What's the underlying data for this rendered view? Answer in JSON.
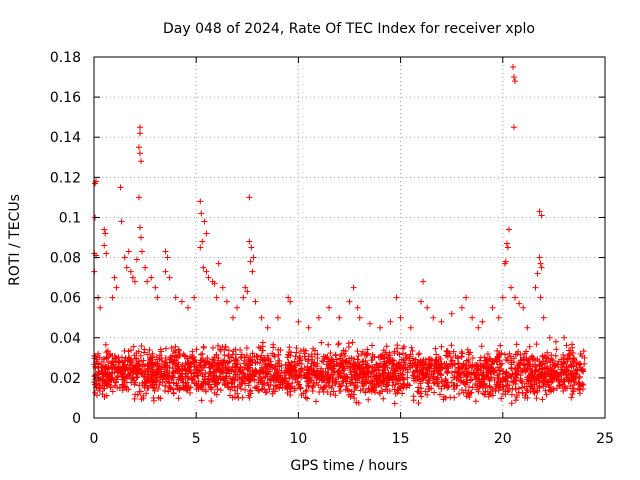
{
  "chart_data": {
    "type": "scatter",
    "title": "Day 048 of 2024, Rate Of TEC Index for receiver xplo",
    "xlabel": "GPS time / hours",
    "ylabel": "ROTI / TECUs",
    "xlim": [
      0,
      25
    ],
    "ylim": [
      0,
      0.18
    ],
    "x_ticks": [
      0,
      5,
      10,
      15,
      20,
      25
    ],
    "x_tick_labels": [
      "0",
      "5",
      "10",
      "15",
      "20",
      "25"
    ],
    "y_ticks": [
      0,
      0.02,
      0.04,
      0.06,
      0.08,
      0.1,
      0.12,
      0.14,
      0.16,
      0.18
    ],
    "y_tick_labels": [
      "0",
      "0.02",
      "0.04",
      "0.06",
      "0.08",
      "0.1",
      "0.12",
      "0.14",
      "0.16",
      "0.18"
    ],
    "grid": true,
    "marker": "+",
    "marker_color": "#ff0000",
    "points": [
      [
        0.05,
        0.117
      ],
      [
        0.1,
        0.118
      ],
      [
        0.05,
        0.1
      ],
      [
        0.02,
        0.082
      ],
      [
        0.1,
        0.081
      ],
      [
        0.02,
        0.073
      ],
      [
        0.3,
        0.055
      ],
      [
        0.5,
        0.094
      ],
      [
        0.55,
        0.092
      ],
      [
        0.5,
        0.086
      ],
      [
        0.6,
        0.082
      ],
      [
        0.2,
        0.06
      ],
      [
        0.9,
        0.06
      ],
      [
        1.0,
        0.07
      ],
      [
        1.1,
        0.065
      ],
      [
        1.3,
        0.115
      ],
      [
        1.35,
        0.098
      ],
      [
        1.5,
        0.08
      ],
      [
        1.6,
        0.075
      ],
      [
        1.7,
        0.083
      ],
      [
        1.8,
        0.073
      ],
      [
        1.9,
        0.07
      ],
      [
        2.0,
        0.068
      ],
      [
        2.1,
        0.079
      ],
      [
        2.25,
        0.145
      ],
      [
        2.25,
        0.142
      ],
      [
        2.2,
        0.135
      ],
      [
        2.25,
        0.132
      ],
      [
        2.3,
        0.128
      ],
      [
        2.2,
        0.11
      ],
      [
        2.25,
        0.095
      ],
      [
        2.3,
        0.09
      ],
      [
        2.35,
        0.083
      ],
      [
        2.5,
        0.075
      ],
      [
        2.6,
        0.068
      ],
      [
        2.8,
        0.07
      ],
      [
        3.0,
        0.065
      ],
      [
        3.1,
        0.06
      ],
      [
        3.5,
        0.083
      ],
      [
        3.6,
        0.08
      ],
      [
        3.7,
        0.07
      ],
      [
        3.5,
        0.073
      ],
      [
        4.0,
        0.06
      ],
      [
        4.3,
        0.058
      ],
      [
        4.6,
        0.055
      ],
      [
        4.9,
        0.06
      ],
      [
        5.2,
        0.108
      ],
      [
        5.25,
        0.102
      ],
      [
        5.3,
        0.088
      ],
      [
        5.2,
        0.085
      ],
      [
        5.4,
        0.098
      ],
      [
        5.5,
        0.092
      ],
      [
        5.35,
        0.075
      ],
      [
        5.5,
        0.073
      ],
      [
        5.6,
        0.07
      ],
      [
        5.8,
        0.068
      ],
      [
        5.9,
        0.067
      ],
      [
        6.0,
        0.06
      ],
      [
        6.1,
        0.077
      ],
      [
        6.3,
        0.065
      ],
      [
        6.5,
        0.058
      ],
      [
        6.8,
        0.05
      ],
      [
        7.0,
        0.055
      ],
      [
        7.3,
        0.06
      ],
      [
        7.4,
        0.065
      ],
      [
        7.5,
        0.063
      ],
      [
        7.6,
        0.11
      ],
      [
        7.6,
        0.088
      ],
      [
        7.7,
        0.085
      ],
      [
        7.65,
        0.078
      ],
      [
        7.8,
        0.08
      ],
      [
        7.75,
        0.073
      ],
      [
        7.9,
        0.058
      ],
      [
        8.2,
        0.05
      ],
      [
        8.5,
        0.045
      ],
      [
        9.0,
        0.05
      ],
      [
        9.5,
        0.06
      ],
      [
        9.6,
        0.058
      ],
      [
        10.0,
        0.048
      ],
      [
        10.5,
        0.045
      ],
      [
        11.0,
        0.05
      ],
      [
        11.5,
        0.055
      ],
      [
        12.0,
        0.05
      ],
      [
        12.5,
        0.058
      ],
      [
        12.7,
        0.065
      ],
      [
        12.9,
        0.055
      ],
      [
        13.0,
        0.05
      ],
      [
        13.5,
        0.047
      ],
      [
        14.0,
        0.045
      ],
      [
        14.5,
        0.048
      ],
      [
        14.8,
        0.06
      ],
      [
        15.0,
        0.05
      ],
      [
        15.5,
        0.045
      ],
      [
        16.0,
        0.058
      ],
      [
        16.1,
        0.068
      ],
      [
        16.3,
        0.055
      ],
      [
        16.6,
        0.05
      ],
      [
        17.0,
        0.048
      ],
      [
        17.5,
        0.052
      ],
      [
        18.0,
        0.055
      ],
      [
        18.2,
        0.06
      ],
      [
        18.5,
        0.05
      ],
      [
        18.8,
        0.045
      ],
      [
        19.0,
        0.048
      ],
      [
        19.5,
        0.055
      ],
      [
        19.8,
        0.05
      ],
      [
        20.0,
        0.06
      ],
      [
        20.1,
        0.077
      ],
      [
        20.15,
        0.078
      ],
      [
        20.2,
        0.087
      ],
      [
        20.25,
        0.085
      ],
      [
        20.3,
        0.094
      ],
      [
        20.4,
        0.065
      ],
      [
        20.5,
        0.175
      ],
      [
        20.55,
        0.17
      ],
      [
        20.6,
        0.168
      ],
      [
        20.55,
        0.145
      ],
      [
        20.6,
        0.06
      ],
      [
        20.8,
        0.057
      ],
      [
        21.0,
        0.055
      ],
      [
        21.2,
        0.045
      ],
      [
        21.6,
        0.065
      ],
      [
        21.7,
        0.072
      ],
      [
        21.8,
        0.103
      ],
      [
        21.9,
        0.101
      ],
      [
        21.8,
        0.08
      ],
      [
        21.85,
        0.077
      ],
      [
        21.9,
        0.075
      ],
      [
        21.85,
        0.06
      ],
      [
        22.0,
        0.05
      ],
      [
        22.3,
        0.04
      ],
      [
        22.6,
        0.038
      ],
      [
        23.0,
        0.04
      ],
      [
        23.4,
        0.035
      ],
      [
        23.8,
        0.032
      ],
      [
        24.0,
        0.03
      ]
    ],
    "dense_band": {
      "x_range": [
        0,
        24
      ],
      "y_range": [
        0.005,
        0.04
      ],
      "typical": 0.02
    }
  }
}
